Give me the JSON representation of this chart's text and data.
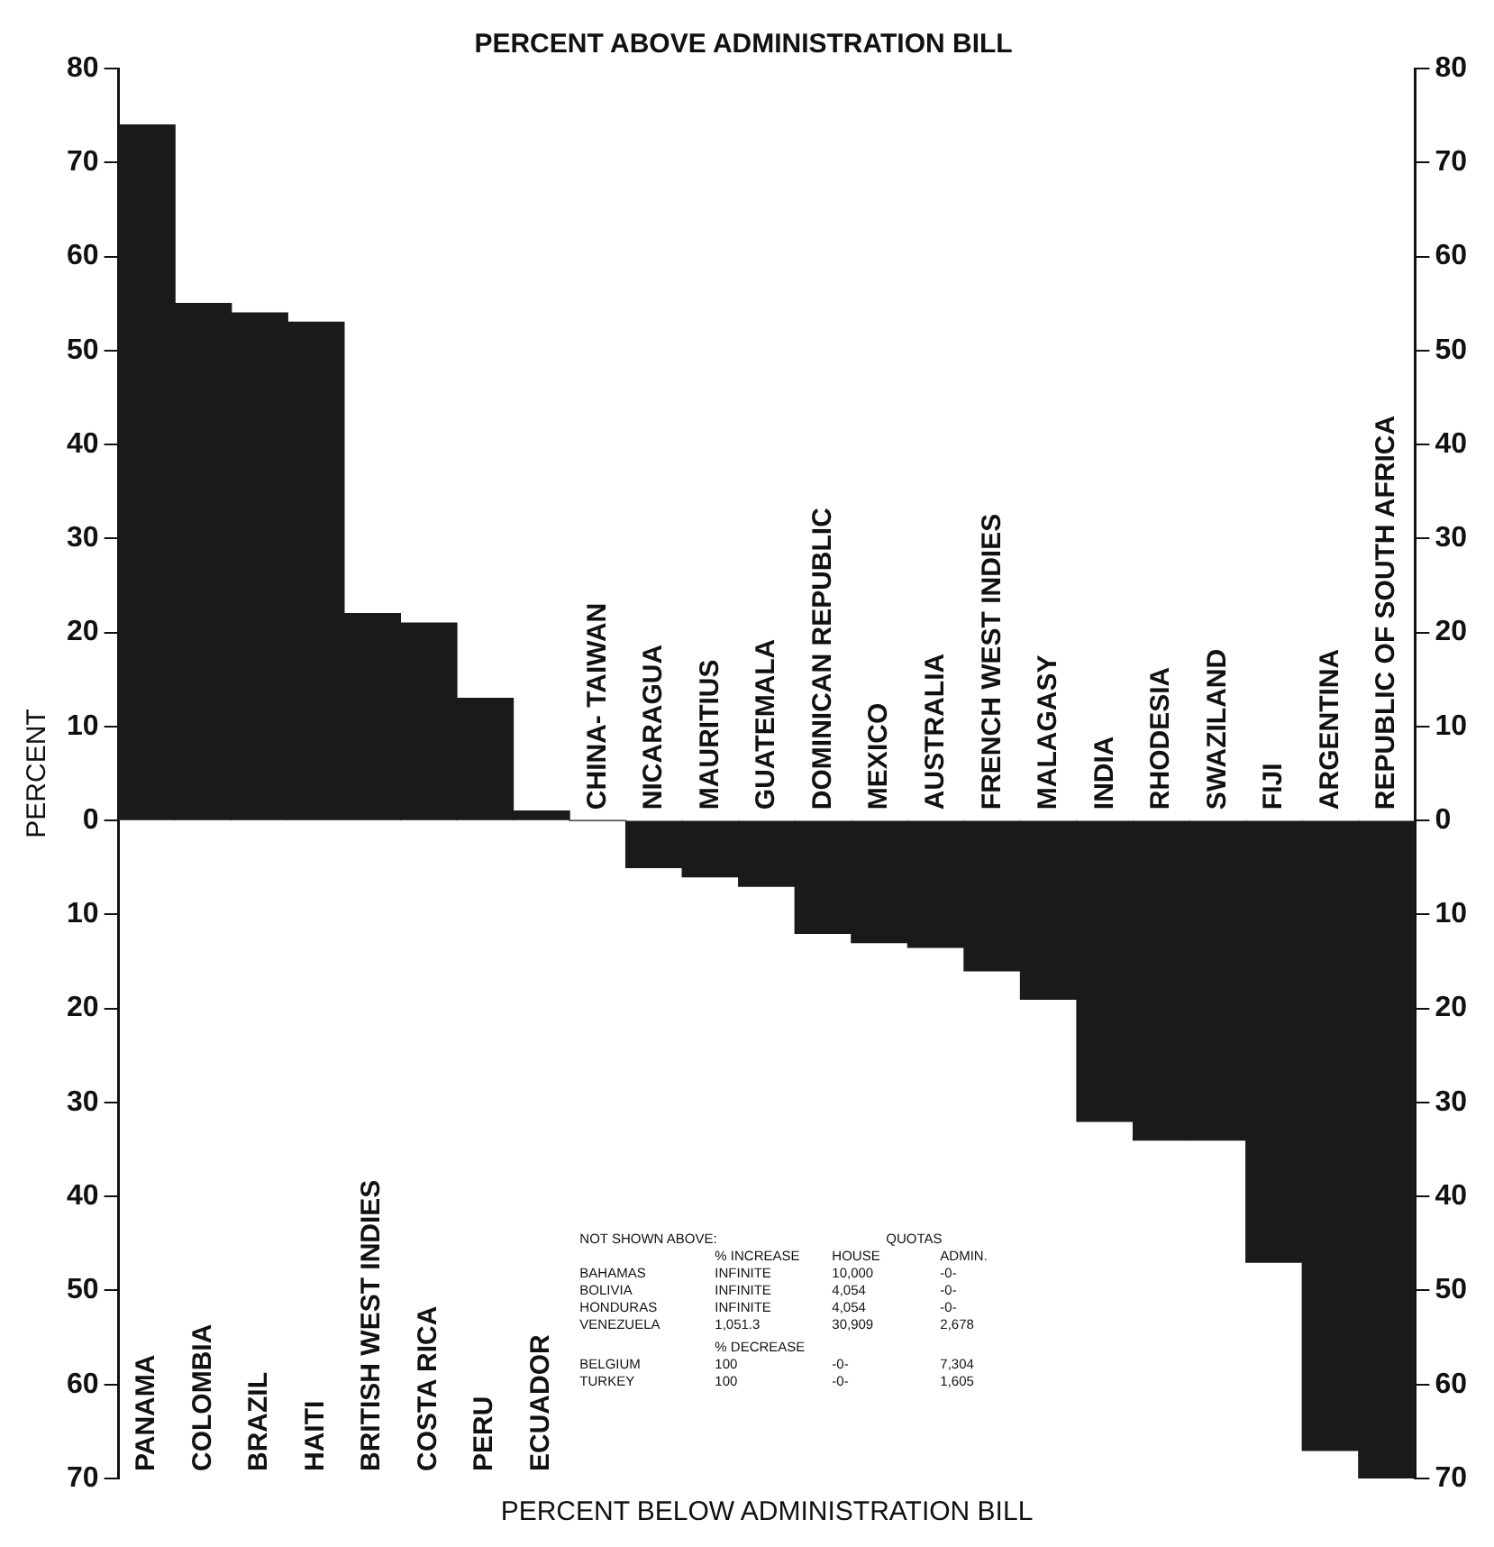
{
  "chart_data": {
    "type": "bar",
    "title": "PERCENT ABOVE ADMINISTRATION BILL",
    "xlabel": "PERCENT BELOW ADMINISTRATION BILL",
    "ylabel": "PERCENT",
    "categories": [
      "PANAMA",
      "COLOMBIA",
      "BRAZIL",
      "HAITI",
      "BRITISH WEST INDIES",
      "COSTA RICA",
      "PERU",
      "ECUADOR",
      "CHINA- TAIWAN",
      "NICARAGUA",
      "MAURITIUS",
      "GUATEMALA",
      "DOMINICAN REPUBLIC",
      "MEXICO",
      "AUSTRALIA",
      "FRENCH WEST INDIES",
      "MALAGASY",
      "INDIA",
      "RHODESIA",
      "SWAZILAND",
      "FIJI",
      "ARGENTINA",
      "REPUBLIC OF SOUTH AFRICA"
    ],
    "values": [
      74,
      55,
      54,
      53,
      22,
      21,
      13,
      1,
      0,
      -5,
      -6,
      -7,
      -12,
      -13,
      -13.5,
      -16,
      -19,
      -32,
      -34,
      -34,
      -47,
      -67,
      -70
    ],
    "color": "#1a1a1a",
    "ylim": [
      -70,
      80
    ],
    "yticks": [
      {
        "value": -70,
        "label": "70"
      },
      {
        "value": -60,
        "label": "60"
      },
      {
        "value": -50,
        "label": "50"
      },
      {
        "value": -40,
        "label": "40"
      },
      {
        "value": -30,
        "label": "30"
      },
      {
        "value": -20,
        "label": "20"
      },
      {
        "value": -10,
        "label": "10"
      },
      0,
      10,
      20,
      30,
      40,
      50,
      60,
      70,
      80
    ],
    "y2lim": [
      -70,
      80
    ],
    "y2ticks": [
      {
        "value": -70,
        "label": "70"
      },
      {
        "value": -60,
        "label": "60"
      },
      {
        "value": -50,
        "label": "50"
      },
      {
        "value": -40,
        "label": "40"
      },
      {
        "value": -30,
        "label": "30"
      },
      {
        "value": -20,
        "label": "20"
      },
      {
        "value": -10,
        "label": "10"
      },
      0,
      10,
      20,
      30,
      40,
      50,
      60,
      70,
      80
    ],
    "grid": false,
    "legend": false,
    "annotations": [
      "NOT SHOWN ABOVE:",
      "QUOTAS",
      "% INCREASE",
      "HOUSE",
      "ADMIN.",
      "BAHAMAS",
      "INFINITE",
      "10,000",
      "-0-",
      "BOLIVIA",
      "INFINITE",
      "4,054",
      "-0-",
      "HONDURAS",
      "INFINITE",
      "4,054",
      "-0-",
      "VENEZUELA",
      "1,051.3",
      "30,909",
      "2,678",
      "% DECREASE",
      "BELGIUM",
      "100",
      "-0-",
      "7,304",
      "TURKEY",
      "100",
      "-0-",
      "1,605"
    ]
  }
}
